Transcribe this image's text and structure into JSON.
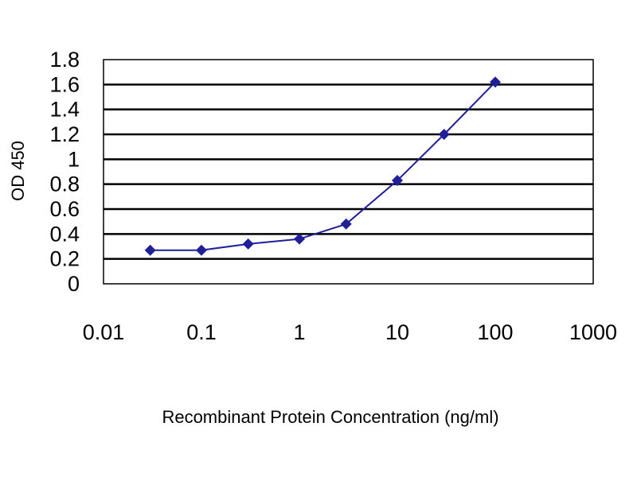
{
  "chart_data": {
    "type": "line",
    "title": "",
    "xlabel": "Recombinant Protein Concentration (ng/ml)",
    "ylabel": "OD 450",
    "x_scale": "log",
    "xlim": [
      0.01,
      1000
    ],
    "ylim": [
      0,
      1.8
    ],
    "x_ticks": [
      "0.01",
      "0.1",
      "1",
      "10",
      "100",
      "1000"
    ],
    "y_ticks": [
      "0",
      "0.2",
      "0.4",
      "0.6",
      "0.8",
      "1",
      "1.2",
      "1.4",
      "1.6",
      "1.8"
    ],
    "grid": true,
    "legend": "none",
    "series": [
      {
        "x": [
          0.03,
          0.1,
          0.3,
          1,
          3,
          10,
          30,
          100
        ],
        "y": [
          0.27,
          0.27,
          0.32,
          0.36,
          0.48,
          0.83,
          1.2,
          1.62
        ],
        "color": "#1f1f9a",
        "marker": "diamond"
      }
    ]
  }
}
